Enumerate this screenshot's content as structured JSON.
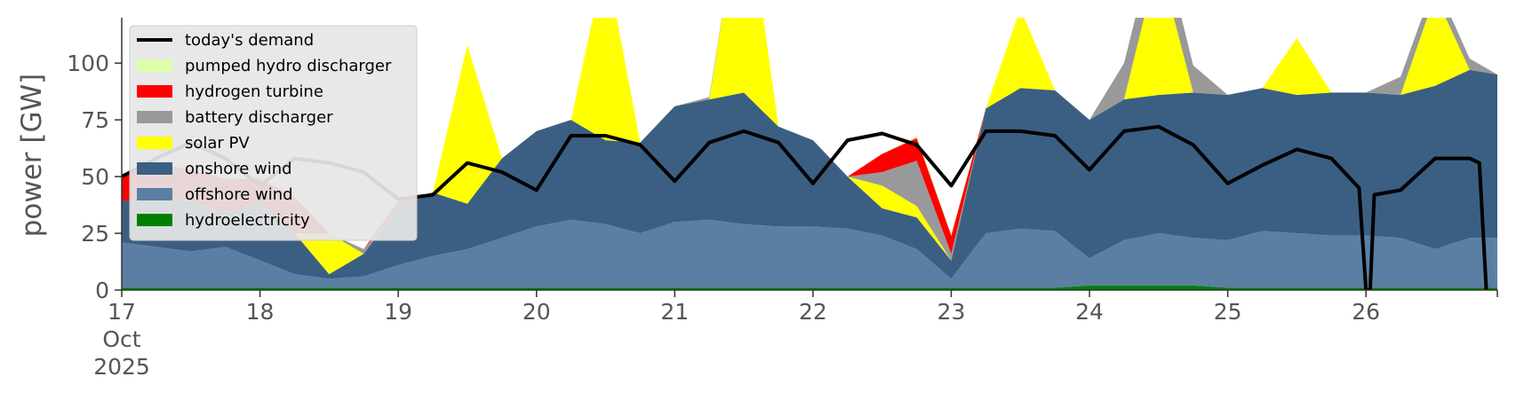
{
  "chart_data": {
    "type": "area",
    "title": "",
    "xlabel": "",
    "ylabel": "power [GW]",
    "x_unit": "day of October 2025 (fractional)",
    "xlim": [
      17,
      26.95
    ],
    "ylim": [
      0,
      120
    ],
    "grid": false,
    "legend_placement": "top-left",
    "x_ticks": [
      {
        "value": 17,
        "lines": [
          "17",
          "Oct",
          "2025"
        ]
      },
      {
        "value": 18,
        "lines": [
          "18"
        ]
      },
      {
        "value": 19,
        "lines": [
          "19"
        ]
      },
      {
        "value": 20,
        "lines": [
          "20"
        ]
      },
      {
        "value": 21,
        "lines": [
          "21"
        ]
      },
      {
        "value": 22,
        "lines": [
          "22"
        ]
      },
      {
        "value": 23,
        "lines": [
          "23"
        ]
      },
      {
        "value": 24,
        "lines": [
          "24"
        ]
      },
      {
        "value": 25,
        "lines": [
          "25"
        ]
      },
      {
        "value": 26,
        "lines": [
          "26"
        ]
      }
    ],
    "y_ticks": [
      0,
      25,
      50,
      75,
      100
    ],
    "x": [
      17.0,
      17.25,
      17.5,
      17.75,
      18.0,
      18.25,
      18.5,
      18.75,
      19.0,
      19.25,
      19.5,
      19.75,
      20.0,
      20.25,
      20.5,
      20.75,
      21.0,
      21.25,
      21.5,
      21.75,
      22.0,
      22.25,
      22.5,
      22.75,
      23.0,
      23.25,
      23.5,
      23.75,
      24.0,
      24.25,
      24.5,
      24.75,
      25.0,
      25.25,
      25.5,
      25.75,
      26.0,
      26.25,
      26.5,
      26.75,
      26.95
    ],
    "series": [
      {
        "name": "hydroelectricity",
        "color": "#008000",
        "values": [
          1,
          1,
          1,
          1,
          1,
          1,
          1,
          1,
          1,
          1,
          1,
          1,
          1,
          1,
          1,
          1,
          1,
          1,
          1,
          1,
          1,
          1,
          1,
          1,
          1,
          1,
          1,
          1,
          2,
          2,
          2,
          2,
          1,
          1,
          1,
          1,
          1,
          1,
          1,
          1,
          1
        ]
      },
      {
        "name": "offshore wind",
        "color": "#5b7fa3",
        "values": [
          20,
          18,
          16,
          18,
          12,
          6,
          4,
          5,
          10,
          14,
          17,
          22,
          27,
          30,
          28,
          24,
          29,
          30,
          28,
          27,
          27,
          26,
          23,
          17,
          4,
          24,
          26,
          25,
          12,
          20,
          23,
          21,
          21,
          25,
          24,
          23,
          23,
          22,
          17,
          22,
          22
        ]
      },
      {
        "name": "onshore wind",
        "color": "#3b5f82",
        "values": [
          18,
          24,
          22,
          15,
          26,
          18,
          2,
          10,
          25,
          28,
          20,
          35,
          42,
          44,
          37,
          40,
          51,
          53,
          58,
          44,
          38,
          23,
          12,
          14,
          8,
          55,
          62,
          62,
          61,
          62,
          61,
          64,
          64,
          63,
          61,
          63,
          63,
          63,
          72,
          74,
          72
        ]
      },
      {
        "name": "solar PV",
        "color": "#ffff00",
        "values": [
          0,
          0,
          0,
          0,
          0,
          0,
          18,
          0,
          0,
          0,
          70,
          0,
          0,
          0,
          80,
          0,
          0,
          0,
          95,
          0,
          0,
          0,
          10,
          5,
          0,
          0,
          35,
          0,
          0,
          0,
          60,
          0,
          0,
          0,
          25,
          0,
          0,
          0,
          40,
          0,
          0
        ]
      },
      {
        "name": "battery discharger",
        "color": "#999999",
        "values": [
          0,
          0,
          0,
          0,
          0,
          0,
          0,
          2,
          0,
          0,
          0,
          0,
          0,
          0,
          0,
          0,
          0,
          1,
          0,
          0,
          0,
          0,
          6,
          20,
          3,
          0,
          0,
          0,
          0,
          16,
          15,
          12,
          0,
          0,
          0,
          0,
          0,
          8,
          6,
          5,
          0
        ]
      },
      {
        "name": "hydrogen turbine",
        "color": "#ff0000",
        "values": [
          12,
          13,
          14,
          15,
          10,
          16,
          0,
          0,
          3,
          0,
          0,
          0,
          0,
          0,
          0,
          0,
          0,
          0,
          0,
          0,
          0,
          0,
          8,
          10,
          8,
          0,
          0,
          0,
          0,
          0,
          0,
          0,
          0,
          0,
          0,
          0,
          0,
          0,
          0,
          0,
          0
        ]
      },
      {
        "name": "pumped hydro discharger",
        "color": "#ddffaa",
        "values": [
          0,
          0,
          0,
          0,
          0,
          0,
          0,
          0,
          0,
          0,
          0,
          0,
          0,
          0,
          0,
          0,
          0,
          0,
          0,
          0,
          0,
          0,
          0,
          1,
          1,
          0,
          0,
          0,
          0,
          0,
          0,
          0,
          0,
          0,
          0,
          0,
          0,
          0,
          0,
          0,
          0
        ]
      }
    ],
    "demand": {
      "name": "today's demand",
      "color": "#000000",
      "x": [
        17.0,
        17.25,
        17.5,
        17.75,
        18.0,
        18.25,
        18.5,
        18.75,
        19.0,
        19.25,
        19.5,
        19.75,
        20.0,
        20.25,
        20.5,
        20.75,
        21.0,
        21.25,
        21.5,
        21.75,
        22.0,
        22.25,
        22.5,
        22.75,
        23.0,
        23.25,
        23.5,
        23.75,
        24.0,
        24.25,
        24.5,
        24.75,
        25.0,
        25.25,
        25.5,
        25.75,
        25.95,
        26.0,
        26.03,
        26.06,
        26.25,
        26.5,
        26.75,
        26.82,
        26.87
      ],
      "values": [
        50,
        58,
        65,
        58,
        46,
        58,
        56,
        52,
        40,
        42,
        56,
        52,
        44,
        68,
        68,
        64,
        48,
        65,
        70,
        65,
        47,
        66,
        69,
        64,
        46,
        70,
        70,
        68,
        53,
        70,
        72,
        64,
        47,
        55,
        62,
        58,
        45,
        0,
        0,
        42,
        44,
        58,
        58,
        56,
        0
      ]
    },
    "legend": [
      {
        "label": "today's demand",
        "color": "#000000",
        "kind": "line"
      },
      {
        "label": "pumped hydro discharger",
        "color": "#ddffaa",
        "kind": "patch"
      },
      {
        "label": "hydrogen turbine",
        "color": "#ff0000",
        "kind": "patch"
      },
      {
        "label": "battery discharger",
        "color": "#999999",
        "kind": "patch"
      },
      {
        "label": "solar PV",
        "color": "#ffff00",
        "kind": "patch"
      },
      {
        "label": "onshore wind",
        "color": "#3b5f82",
        "kind": "patch"
      },
      {
        "label": "offshore wind",
        "color": "#5b7fa3",
        "kind": "patch"
      },
      {
        "label": "hydroelectricity",
        "color": "#008000",
        "kind": "patch"
      }
    ]
  }
}
